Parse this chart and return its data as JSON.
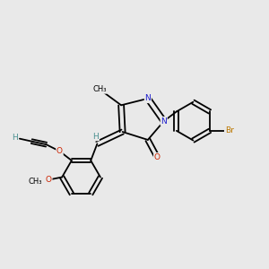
{
  "background_color": "#e9e9e9",
  "figsize": [
    3.0,
    3.0
  ],
  "dpi": 100,
  "atom_colors": {
    "N": "#1a1acc",
    "O": "#cc2200",
    "Br": "#bb7700",
    "H": "#4a9090",
    "C": "#000000"
  },
  "bond_lw": 1.3,
  "font_size": 6.5
}
